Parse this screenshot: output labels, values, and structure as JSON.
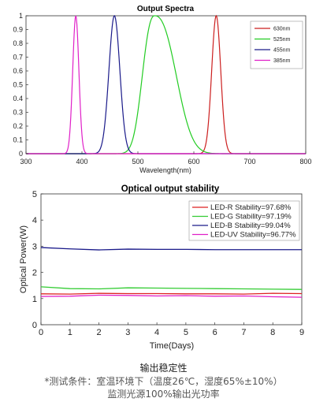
{
  "chart_data": [
    {
      "type": "line",
      "title": "Output Spectra",
      "xlabel": "Wavelength(nm)",
      "ylabel": "",
      "xlim": [
        300,
        800
      ],
      "ylim": [
        0,
        1
      ],
      "xticks": [
        "300",
        "400",
        "500",
        "600",
        "700",
        "800"
      ],
      "yticks": [
        "0",
        "0.1",
        "0.2",
        "0.3",
        "0.4",
        "0.5",
        "0.6",
        "0.7",
        "0.8",
        "0.9",
        "1"
      ],
      "grid": false,
      "legend_position": "top-right",
      "series": [
        {
          "name": "630nm",
          "color": "#cc1f1f",
          "peak": 640,
          "fwhm": 19,
          "shape": "gaussian"
        },
        {
          "name": "525nm",
          "color": "#22cc22",
          "peak": 530,
          "fwhm": 75,
          "shape": "broad"
        },
        {
          "name": "455nm",
          "color": "#1a1a8a",
          "peak": 458,
          "fwhm": 23,
          "shape": "gaussian"
        },
        {
          "name": "385nm",
          "color": "#e020c8",
          "peak": 389,
          "fwhm": 13,
          "shape": "gaussian"
        }
      ]
    },
    {
      "type": "line",
      "title": "Optical output stability",
      "xlabel": "Time(Days)",
      "ylabel": "Optical Power(W)",
      "xlim": [
        0,
        9
      ],
      "ylim": [
        0,
        5
      ],
      "xticks": [
        "0",
        "1",
        "2",
        "3",
        "4",
        "5",
        "6",
        "7",
        "8",
        "9"
      ],
      "yticks": [
        "0",
        "1",
        "2",
        "3",
        "4",
        "5"
      ],
      "grid": false,
      "legend_position": "top-right",
      "series": [
        {
          "name": "LED-R Stability=97.68%",
          "color": "#dd2222",
          "x": [
            0,
            1,
            2,
            3,
            4,
            5,
            6,
            7,
            8,
            9
          ],
          "y": [
            1.18,
            1.17,
            1.2,
            1.19,
            1.19,
            1.18,
            1.18,
            1.17,
            1.2,
            1.19
          ]
        },
        {
          "name": "LED-G Stability=97.19%",
          "color": "#33cc33",
          "x": [
            0,
            1,
            2,
            3,
            4,
            5,
            6,
            7,
            8,
            9
          ],
          "y": [
            1.45,
            1.38,
            1.37,
            1.41,
            1.4,
            1.39,
            1.38,
            1.37,
            1.36,
            1.35
          ]
        },
        {
          "name": "LED-B Stability=99.04%",
          "color": "#1a1a8a",
          "x": [
            0,
            1,
            2,
            3,
            4,
            5,
            6,
            7,
            8,
            9
          ],
          "y": [
            2.95,
            2.9,
            2.86,
            2.89,
            2.88,
            2.88,
            2.87,
            2.87,
            2.87,
            2.87
          ]
        },
        {
          "name": "LED-UV Stability=96.77%",
          "color": "#e020c8",
          "x": [
            0,
            1,
            2,
            3,
            4,
            5,
            6,
            7,
            8,
            9
          ],
          "y": [
            1.08,
            1.09,
            1.13,
            1.12,
            1.1,
            1.11,
            1.09,
            1.1,
            1.07,
            1.05
          ]
        }
      ]
    }
  ],
  "caption": {
    "title": "输出稳定性",
    "line1": "*测试条件：室温环境下（温度26℃，湿度65%±10%）",
    "line2": "监测光源100%输出光功率"
  }
}
